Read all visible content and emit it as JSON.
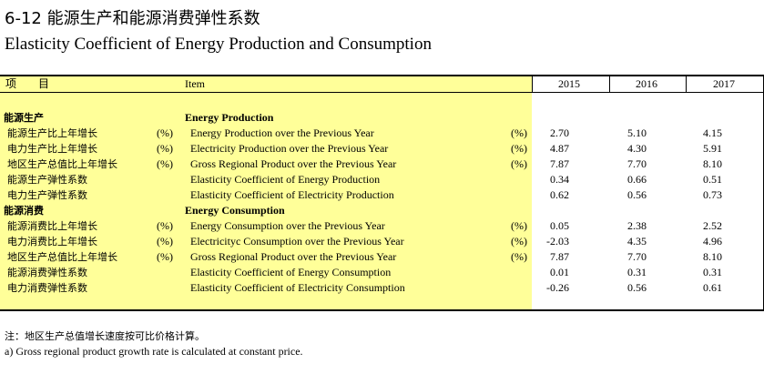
{
  "title_cn": "6-12 能源生产和能源消费弹性系数",
  "title_en": "Elasticity Coefficient of Energy Production and Consumption",
  "header": {
    "item_cn": "项　　目",
    "item_en": "Item",
    "years": [
      "2015",
      "2016",
      "2017"
    ]
  },
  "sections": [
    {
      "heading_cn": "能源生产",
      "heading_en": "Energy Production",
      "rows": [
        {
          "cn": "能源生产比上年增长",
          "unit_cn": "(%)",
          "en": "Energy Production over the Previous Year",
          "unit_en": "(%)",
          "values": [
            "2.70",
            "5.10",
            "4.15"
          ]
        },
        {
          "cn": "电力生产比上年增长",
          "unit_cn": "(%)",
          "en": "Electricity Production over the Previous Year",
          "unit_en": "(%)",
          "values": [
            "4.87",
            "4.30",
            "5.91"
          ]
        },
        {
          "cn": "地区生产总值比上年增长",
          "unit_cn": "(%)",
          "en": "Gross Regional Product over the Previous Year",
          "unit_en": "(%)",
          "values": [
            "7.87",
            "7.70",
            "8.10"
          ]
        },
        {
          "cn": "能源生产弹性系数",
          "unit_cn": "",
          "en": "Elasticity Coefficient of  Energy Production",
          "unit_en": "",
          "values": [
            "0.34",
            "0.66",
            "0.51"
          ]
        },
        {
          "cn": "电力生产弹性系数",
          "unit_cn": "",
          "en": "Elasticity Coefficient of  Electricity Production",
          "unit_en": "",
          "values": [
            "0.62",
            "0.56",
            "0.73"
          ]
        }
      ]
    },
    {
      "heading_cn": "能源消费",
      "heading_en": "Energy Consumption",
      "rows": [
        {
          "cn": "能源消费比上年增长",
          "unit_cn": "(%)",
          "en": "Energy Consumption over the Previous Year",
          "unit_en": "(%)",
          "values": [
            "0.05",
            "2.38",
            "2.52"
          ]
        },
        {
          "cn": "电力消费比上年增长",
          "unit_cn": "(%)",
          "en": "Electricityc Consumption over the Previous Year",
          "unit_en": "(%)",
          "values": [
            "-2.03",
            "4.35",
            "4.96"
          ]
        },
        {
          "cn": "地区生产总值比上年增长",
          "unit_cn": "(%)",
          "en": "Gross Regional Product over the Previous Year",
          "unit_en": "(%)",
          "values": [
            "7.87",
            "7.70",
            "8.10"
          ]
        },
        {
          "cn": "能源消费弹性系数",
          "unit_cn": "",
          "en": "Elasticity Coefficient of  Energy Consumption",
          "unit_en": "",
          "values": [
            "0.01",
            "0.31",
            "0.31"
          ]
        },
        {
          "cn": "电力消费弹性系数",
          "unit_cn": "",
          "en": "Elasticity Coefficient of  Electricity Consumption",
          "unit_en": "",
          "values": [
            "-0.26",
            "0.56",
            "0.61"
          ]
        }
      ]
    }
  ],
  "note_cn": "注：地区生产总值增长速度按可比价格计算。",
  "note_en": "a) Gross regional product  growth rate is calculated at constant price.",
  "colors": {
    "highlight": "#ffff99",
    "border": "#000000"
  }
}
